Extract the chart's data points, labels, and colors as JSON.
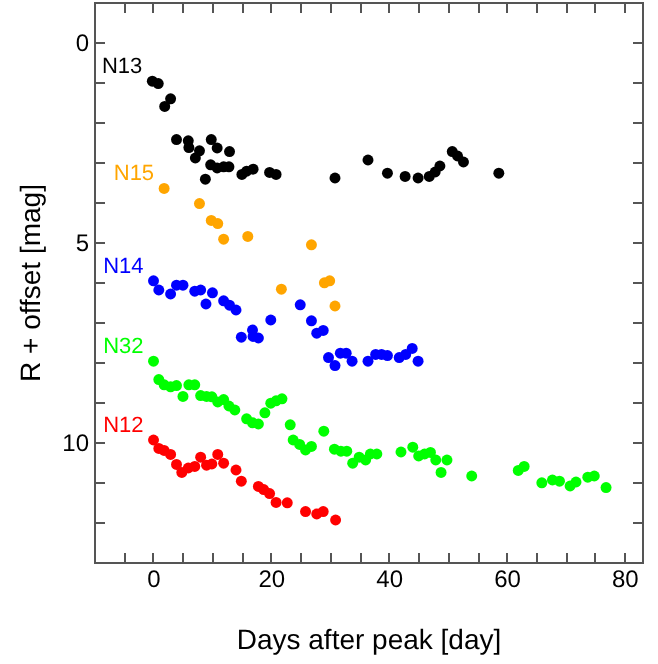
{
  "chart_data": {
    "type": "scatter",
    "xlabel": "Days after peak [day]",
    "ylabel": "R + offset [mag]",
    "xlim": [
      -10,
      83
    ],
    "ylim": [
      13,
      -1
    ],
    "xticks": [
      {
        "value": -10,
        "label": null
      },
      {
        "value": -5,
        "label": null
      },
      0,
      {
        "value": 5,
        "label": null
      },
      {
        "value": 10,
        "label": null
      },
      {
        "value": 15,
        "label": null
      },
      20,
      {
        "value": 25,
        "label": null
      },
      {
        "value": 30,
        "label": null
      },
      {
        "value": 35,
        "label": null
      },
      40,
      {
        "value": 45,
        "label": null
      },
      {
        "value": 50,
        "label": null
      },
      {
        "value": 55,
        "label": null
      },
      60,
      {
        "value": 65,
        "label": null
      },
      {
        "value": 70,
        "label": null
      },
      {
        "value": 75,
        "label": null
      },
      80
    ],
    "yticks": [
      {
        "value": -1,
        "label": null
      },
      0,
      {
        "value": 1,
        "label": null
      },
      {
        "value": 2,
        "label": null
      },
      {
        "value": 3,
        "label": null
      },
      {
        "value": 4,
        "label": null
      },
      5,
      {
        "value": 6,
        "label": null
      },
      {
        "value": 7,
        "label": null
      },
      {
        "value": 8,
        "label": null
      },
      {
        "value": 9,
        "label": null
      },
      10,
      {
        "value": 11,
        "label": null
      },
      {
        "value": 12,
        "label": null
      },
      {
        "value": 13,
        "label": null
      }
    ],
    "grid": false,
    "marker": "circle",
    "series": [
      {
        "name": "N13",
        "color": "#000000",
        "x": [
          -0.1,
          0.9,
          2.0,
          3.0,
          4.0,
          6.0,
          6.1,
          7.2,
          7.9,
          8.9,
          9.8,
          9.9,
          10.9,
          10.9,
          12.0,
          12.9,
          13.0,
          15.1,
          15.9,
          17.0,
          19.8,
          20.9,
          30.9,
          36.5,
          39.8,
          42.8,
          45.0,
          46.9,
          47.9,
          48.7,
          50.8,
          51.7,
          52.7,
          58.7
        ],
        "values": [
          0.98,
          1.04,
          1.61,
          1.42,
          2.44,
          2.47,
          2.64,
          2.9,
          2.72,
          3.43,
          3.07,
          2.44,
          3.15,
          2.65,
          3.12,
          3.12,
          2.74,
          3.31,
          3.23,
          3.18,
          3.26,
          3.31,
          3.4,
          2.95,
          3.28,
          3.36,
          3.4,
          3.36,
          3.25,
          3.1,
          2.74,
          2.85,
          3.0,
          3.28
        ]
      },
      {
        "name": "N15",
        "color": "#ffa500",
        "x": [
          1.9,
          7.9,
          9.9,
          11.0,
          12.0,
          16.1,
          21.8,
          26.9,
          29.1,
          30.0,
          30.9
        ],
        "values": [
          3.66,
          4.04,
          4.46,
          4.54,
          4.93,
          4.86,
          6.18,
          5.07,
          6.02,
          5.97,
          6.6
        ]
      },
      {
        "name": "N14",
        "color": "#0000ff",
        "x": [
          0.1,
          1.0,
          3.0,
          4.0,
          5.1,
          7.1,
          8.1,
          9.0,
          10.1,
          12.0,
          13.0,
          14.1,
          15.0,
          16.9,
          17.0,
          17.9,
          20.0,
          25.0,
          26.9,
          27.8,
          28.9,
          29.8,
          30.9,
          31.8,
          32.8,
          33.8,
          36.5,
          37.8,
          38.8,
          39.8,
          41.8,
          42.9,
          44.0,
          45.0
        ],
        "values": [
          5.97,
          6.2,
          6.3,
          6.08,
          6.08,
          6.23,
          6.2,
          6.55,
          6.27,
          6.47,
          6.58,
          6.7,
          7.38,
          7.2,
          7.36,
          7.4,
          6.95,
          6.57,
          6.97,
          7.28,
          7.21,
          7.89,
          8.09,
          7.78,
          7.78,
          7.98,
          7.98,
          7.81,
          7.81,
          7.84,
          7.89,
          7.81,
          7.66,
          7.98
        ]
      },
      {
        "name": "N32",
        "color": "#00ff00",
        "x": [
          0.1,
          1.0,
          1.9,
          3.0,
          4.0,
          5.1,
          6.1,
          7.1,
          8.1,
          9.1,
          10.0,
          11.0,
          12.0,
          12.9,
          13.9,
          15.9,
          16.9,
          17.9,
          19.0,
          20.0,
          20.9,
          21.9,
          23.3,
          23.8,
          24.9,
          25.9,
          26.9,
          29.0,
          30.8,
          31.9,
          32.9,
          33.9,
          35.0,
          36.1,
          36.9,
          38.0,
          42.1,
          44.1,
          45.1,
          46.1,
          47.1,
          48.0,
          48.9,
          49.9,
          54.1,
          62.0,
          63.0,
          66.0,
          67.8,
          69.0,
          70.8,
          71.8,
          73.8,
          74.9,
          76.9
        ],
        "values": [
          7.98,
          8.44,
          8.57,
          8.62,
          8.59,
          8.86,
          8.57,
          8.57,
          8.84,
          8.86,
          8.87,
          9.0,
          8.94,
          9.1,
          9.2,
          9.42,
          9.52,
          9.55,
          9.27,
          9.03,
          8.97,
          8.92,
          9.57,
          9.95,
          10.06,
          10.2,
          10.11,
          9.73,
          10.18,
          10.23,
          10.23,
          10.53,
          10.38,
          10.45,
          10.3,
          10.3,
          10.25,
          10.13,
          10.35,
          10.3,
          10.26,
          10.45,
          10.76,
          10.45,
          10.85,
          10.71,
          10.61,
          11.02,
          10.95,
          10.98,
          11.1,
          11.0,
          10.88,
          10.85,
          11.14
        ]
      },
      {
        "name": "N12",
        "color": "#ff0000",
        "x": [
          0.1,
          1.0,
          1.9,
          3.0,
          4.0,
          4.9,
          6.0,
          7.1,
          8.1,
          9.1,
          10.0,
          11.0,
          12.0,
          14.1,
          15.0,
          17.9,
          18.8,
          19.8,
          20.9,
          22.8,
          25.9,
          27.8,
          28.9,
          31.0
        ],
        "values": [
          9.95,
          10.16,
          10.21,
          10.31,
          10.56,
          10.76,
          10.65,
          10.61,
          10.38,
          10.58,
          10.55,
          10.31,
          10.53,
          10.7,
          10.98,
          11.11,
          11.19,
          11.29,
          11.51,
          11.52,
          11.74,
          11.8,
          11.74,
          11.95
        ]
      }
    ]
  }
}
